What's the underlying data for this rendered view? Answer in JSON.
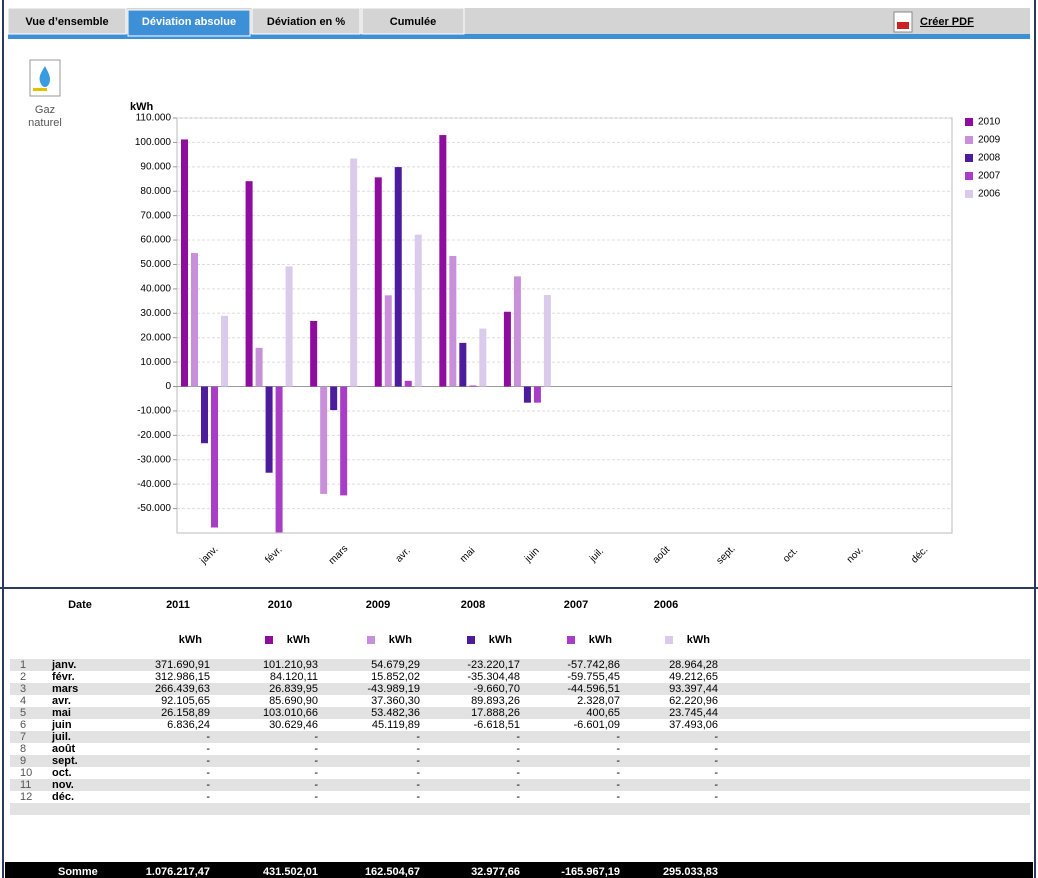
{
  "tabs": [
    "Vue d’ensemble",
    "Déviation absolue",
    "Déviation en %",
    "Cumulée"
  ],
  "active_tab": 1,
  "pdf_link": "Créer PDF",
  "icon_label": [
    "Gaz",
    "naturel"
  ],
  "chart_data": {
    "type": "bar",
    "y_label": "kWh",
    "categories": [
      "janv.",
      "févr.",
      "mars",
      "avr.",
      "mai",
      "juin",
      "juil.",
      "août",
      "sept.",
      "oct.",
      "nov.",
      "déc."
    ],
    "series": [
      {
        "name": "2010",
        "color": "#8e0c9e",
        "values": [
          101210.93,
          84120.11,
          26839.95,
          85690.9,
          103010.66,
          30629.46,
          null,
          null,
          null,
          null,
          null,
          null
        ]
      },
      {
        "name": "2009",
        "color": "#c890d8",
        "values": [
          54679.29,
          15852.02,
          -43989.19,
          37360.3,
          53482.36,
          45119.89,
          null,
          null,
          null,
          null,
          null,
          null
        ]
      },
      {
        "name": "2008",
        "color": "#4d1c9c",
        "values": [
          -23220.17,
          -35304.48,
          -9660.7,
          89893.26,
          17888.26,
          -6618.51,
          null,
          null,
          null,
          null,
          null,
          null
        ]
      },
      {
        "name": "2007",
        "color": "#a83ec6",
        "values": [
          -57742.86,
          -59755.45,
          -44596.51,
          2328.07,
          400.65,
          -6601.09,
          null,
          null,
          null,
          null,
          null,
          null
        ]
      },
      {
        "name": "2006",
        "color": "#dacbec",
        "values": [
          28964.28,
          49212.65,
          93397.44,
          62220.96,
          23745.44,
          37493.06,
          null,
          null,
          null,
          null,
          null,
          null
        ]
      }
    ],
    "ylim": [
      -60000,
      110000
    ],
    "yticks": [
      {
        "value": -50000,
        "label": "-50.000"
      },
      {
        "value": -40000,
        "label": "-40.000"
      },
      {
        "value": -30000,
        "label": "-30.000"
      },
      {
        "value": -20000,
        "label": "-20.000"
      },
      {
        "value": -10000,
        "label": "-10.000"
      },
      0,
      {
        "value": 10000,
        "label": "10.000"
      },
      {
        "value": 20000,
        "label": "20.000"
      },
      {
        "value": 30000,
        "label": "30.000"
      },
      {
        "value": 40000,
        "label": "40.000"
      },
      {
        "value": 50000,
        "label": "50.000"
      },
      {
        "value": 60000,
        "label": "60.000"
      },
      {
        "value": 70000,
        "label": "70.000"
      },
      {
        "value": 80000,
        "label": "80.000"
      },
      {
        "value": 90000,
        "label": "90.000"
      },
      {
        "value": 100000,
        "label": "100.000"
      },
      {
        "value": 110000,
        "label": "110.000"
      }
    ],
    "grid": true,
    "legend": "right"
  },
  "table": {
    "header": [
      "Date",
      "2011",
      "2010",
      "2009",
      "2008",
      "2007",
      "2006"
    ],
    "units": [
      "kWh",
      "kWh",
      "kWh",
      "kWh",
      "kWh",
      "kWh"
    ],
    "rows": [
      [
        "1",
        "janv.",
        "371.690,91",
        "101.210,93",
        "54.679,29",
        "-23.220,17",
        "-57.742,86",
        "28.964,28"
      ],
      [
        "2",
        "févr.",
        "312.986,15",
        "84.120,11",
        "15.852,02",
        "-35.304,48",
        "-59.755,45",
        "49.212,65"
      ],
      [
        "3",
        "mars",
        "266.439,63",
        "26.839,95",
        "-43.989,19",
        "-9.660,70",
        "-44.596,51",
        "93.397,44"
      ],
      [
        "4",
        "avr.",
        "92.105,65",
        "85.690,90",
        "37.360,30",
        "89.893,26",
        "2.328,07",
        "62.220,96"
      ],
      [
        "5",
        "mai",
        "26.158,89",
        "103.010,66",
        "53.482,36",
        "17.888,26",
        "400,65",
        "23.745,44"
      ],
      [
        "6",
        "juin",
        "6.836,24",
        "30.629,46",
        "45.119,89",
        "-6.618,51",
        "-6.601,09",
        "37.493,06"
      ],
      [
        "7",
        "juil.",
        "-",
        "-",
        "-",
        "-",
        "-",
        "-"
      ],
      [
        "8",
        "août",
        "-",
        "-",
        "-",
        "-",
        "-",
        "-"
      ],
      [
        "9",
        "sept.",
        "-",
        "-",
        "-",
        "-",
        "-",
        "-"
      ],
      [
        "10",
        "oct.",
        "-",
        "-",
        "-",
        "-",
        "-",
        "-"
      ],
      [
        "11",
        "nov.",
        "-",
        "-",
        "-",
        "-",
        "-",
        "-"
      ],
      [
        "12",
        "déc.",
        "-",
        "-",
        "-",
        "-",
        "-",
        "-"
      ]
    ],
    "total": [
      "Somme",
      "1.076.217,47",
      "431.502,01",
      "162.504,67",
      "32.977,66",
      "-165.967,19",
      "295.033,83"
    ]
  }
}
